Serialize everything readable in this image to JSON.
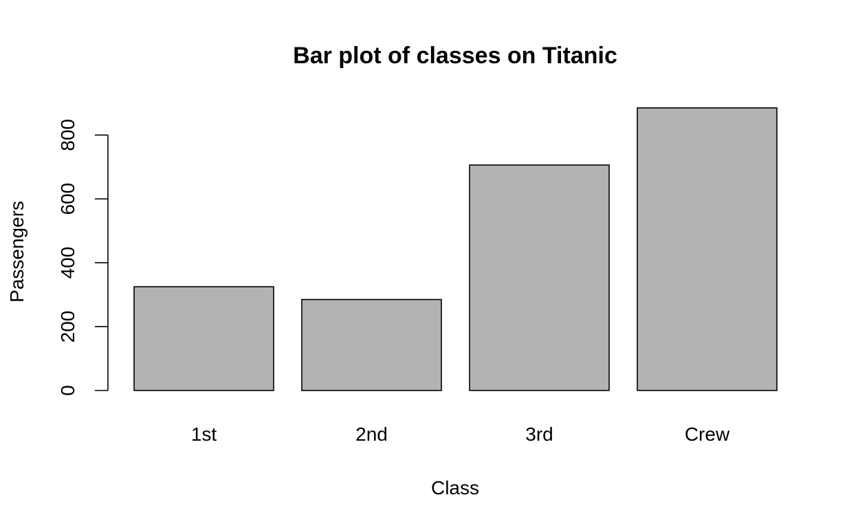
{
  "chart_data": {
    "type": "bar",
    "title": "Bar plot of classes on Titanic",
    "xlabel": "Class",
    "ylabel": "Passengers",
    "categories": [
      "1st",
      "2nd",
      "3rd",
      "Crew"
    ],
    "values": [
      325,
      285,
      706,
      885
    ],
    "yticks": [
      0,
      200,
      400,
      600,
      800
    ],
    "ytick_labels": [
      "0",
      "200",
      "400",
      "600",
      "800"
    ],
    "ylim": [
      0,
      885
    ],
    "bar_color": "#b3b3b3",
    "border_color": "#000000",
    "grid": false,
    "legend": "none"
  }
}
